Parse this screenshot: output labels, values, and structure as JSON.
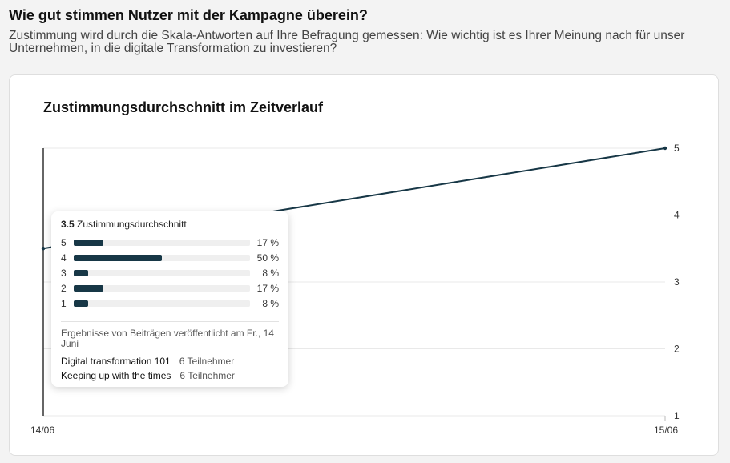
{
  "header": {
    "title": "Wie gut stimmen Nutzer mit der Kampagne überein?",
    "subtitle": "Zustimmung wird durch die Skala-Antworten auf Ihre Befragung gemessen: Wie wichtig ist es Ihrer Meinung nach für unser Unternehmen, in die digitale Transformation zu investieren?"
  },
  "chart_data": {
    "type": "line",
    "title": "Zustimmungsdurchschnitt im Zeitverlauf",
    "x": [
      "14/06",
      "15/06"
    ],
    "series": [
      {
        "values": [
          3.5,
          5
        ]
      }
    ],
    "y_ticks": [
      "1",
      "2",
      "3",
      "4",
      "5"
    ],
    "ylim": [
      1,
      5
    ],
    "grid": true,
    "line_color": "#173746"
  },
  "tooltip": {
    "average_value": "3.5",
    "average_label": "Zustimmungsdurchschnitt",
    "distribution": [
      {
        "score": "5",
        "percent": 17,
        "label": "17 %"
      },
      {
        "score": "4",
        "percent": 50,
        "label": "50 %"
      },
      {
        "score": "3",
        "percent": 8,
        "label": "8 %"
      },
      {
        "score": "2",
        "percent": 17,
        "label": "17 %"
      },
      {
        "score": "1",
        "percent": 8,
        "label": "8 %"
      }
    ],
    "note": "Ergebnisse von Beiträgen veröffentlicht am Fr., 14 Juni",
    "posts": [
      {
        "name": "Digital transformation 101",
        "count": "6 Teilnehmer"
      },
      {
        "name": "Keeping up with the times",
        "count": "6 Teilnehmer"
      }
    ]
  }
}
